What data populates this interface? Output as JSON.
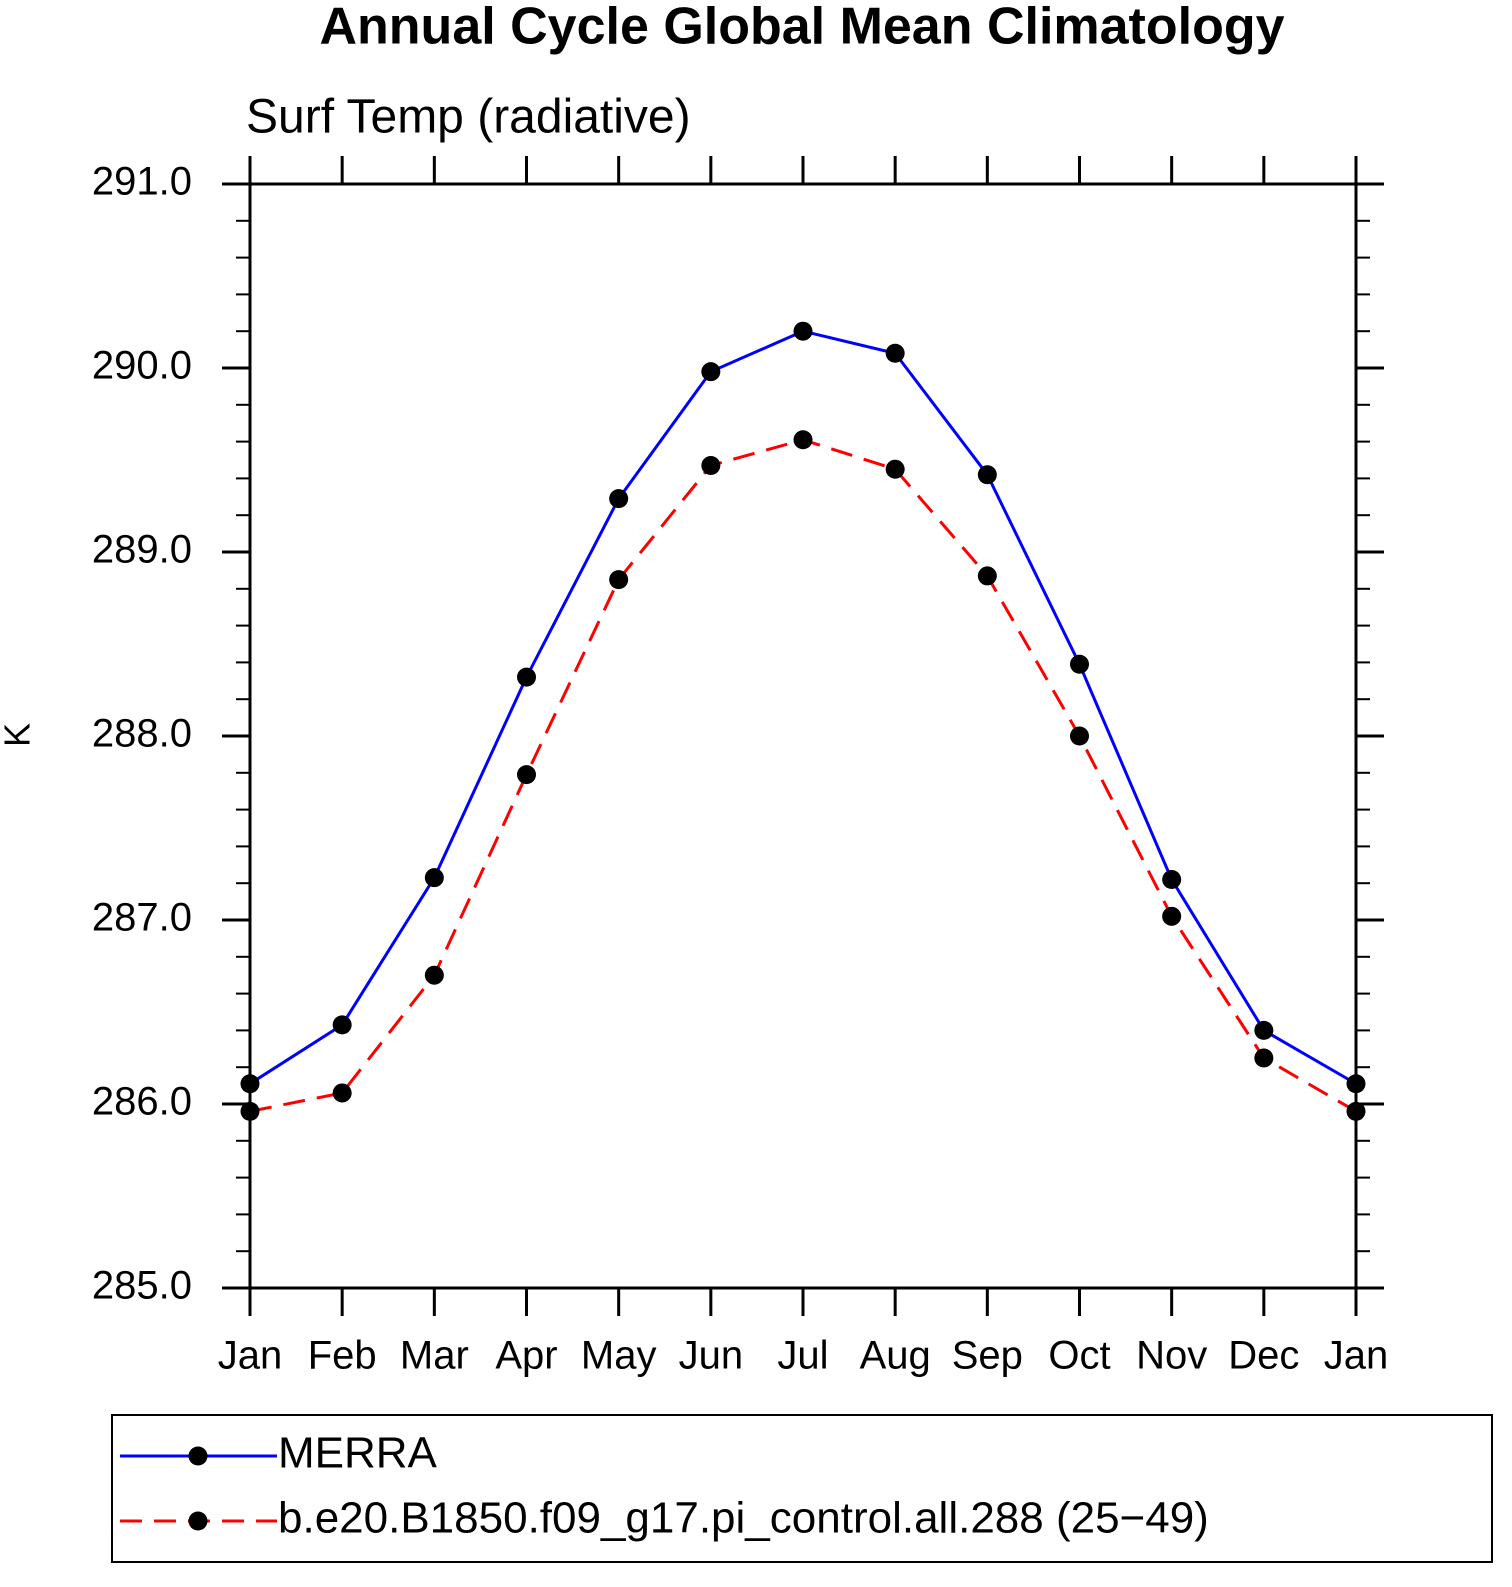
{
  "chart_data": {
    "type": "line",
    "title": "Annual Cycle Global Mean Climatology",
    "subtitle": "Surf Temp (radiative)",
    "y_label": "K",
    "categories": [
      "Jan",
      "Feb",
      "Mar",
      "Apr",
      "May",
      "Jun",
      "Jul",
      "Aug",
      "Sep",
      "Oct",
      "Nov",
      "Dec",
      "Jan"
    ],
    "series": [
      {
        "name": "MERRA",
        "color": "#0000ff",
        "dash": "solid",
        "values": [
          286.11,
          286.43,
          287.23,
          288.32,
          289.29,
          289.98,
          290.2,
          290.08,
          289.42,
          288.39,
          287.22,
          286.4,
          286.11
        ]
      },
      {
        "name": "b.e20.B1850.f09_g17.pi_control.all.288 (25−49)",
        "color": "#ff0000",
        "dash": "dashed",
        "values": [
          285.96,
          286.06,
          286.7,
          287.79,
          288.85,
          289.47,
          289.61,
          289.45,
          288.87,
          288.0,
          287.02,
          286.25,
          285.96
        ]
      }
    ],
    "marker_color": "#000000",
    "ylim": [
      285,
      291
    ],
    "yticks": [
      {
        "value": 285,
        "label": "285.0"
      },
      {
        "value": 286,
        "label": "286.0"
      },
      {
        "value": 287,
        "label": "287.0"
      },
      {
        "value": 288,
        "label": "288.0"
      },
      {
        "value": 289,
        "label": "289.0"
      },
      {
        "value": 290,
        "label": "290.0"
      },
      {
        "value": 291,
        "label": "291.0"
      }
    ],
    "yminorticks": [
      285.2,
      285.4,
      285.6,
      285.8,
      286.2,
      286.4,
      286.6,
      286.8,
      287.2,
      287.4,
      287.6,
      287.8,
      288.2,
      288.4,
      288.6,
      288.8,
      289.2,
      289.4,
      289.6,
      289.8,
      290.2,
      290.4,
      290.6,
      290.8
    ]
  }
}
